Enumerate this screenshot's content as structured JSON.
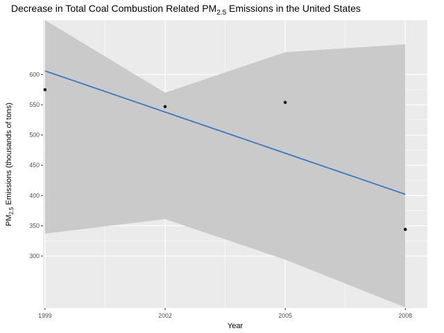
{
  "chart_data": {
    "type": "scatter",
    "title": {
      "prefix": "Decrease in Total Coal Combustion Related PM",
      "subscript": "2.5",
      "suffix": " Emissions in the United States"
    },
    "xlabel": "Year",
    "ylabel": {
      "prefix": "PM",
      "subscript": "2.5",
      "suffix": " Emissions (thousands of tons)"
    },
    "x_ticks": [
      1999,
      2002,
      2005,
      2008
    ],
    "y_ticks": [
      300,
      350,
      400,
      450,
      500,
      550,
      600
    ],
    "xlim": [
      1998.95,
      2008.55
    ],
    "ylim": [
      214,
      690
    ],
    "grid": true,
    "series": [
      {
        "kind": "points",
        "x": [
          1999,
          2002,
          2005,
          2008
        ],
        "y": [
          575,
          547,
          554,
          344
        ]
      }
    ],
    "trend": {
      "kind": "linear-fit",
      "x": [
        1999,
        2008
      ],
      "y": [
        606,
        402
      ]
    },
    "confidence_band": {
      "x": [
        1999,
        2002,
        2005,
        2008
      ],
      "upper": [
        690,
        570,
        637,
        650
      ],
      "lower": [
        337,
        361,
        294,
        215
      ]
    },
    "colors": {
      "panel": "#ebebeb",
      "grid": "#ffffff",
      "band": "#c8c8c8",
      "line": "#3a78c4",
      "point": "#000000"
    }
  }
}
